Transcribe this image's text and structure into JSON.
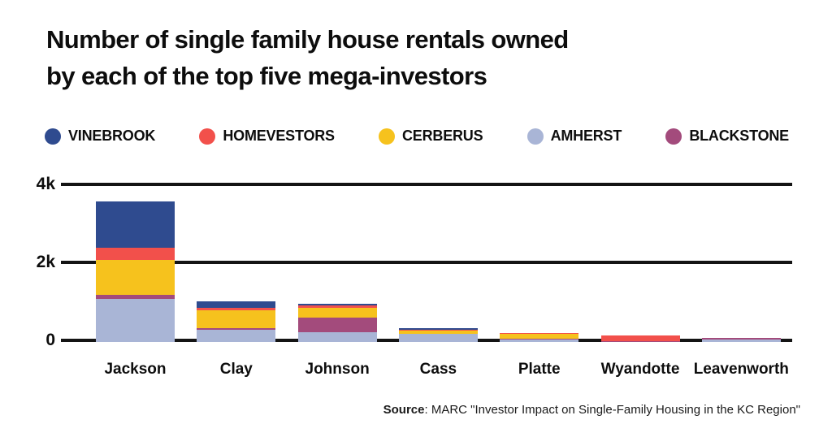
{
  "title": {
    "line1": "Number of single family house rentals owned",
    "line2": "by each of the top five mega-investors"
  },
  "source": {
    "label": "Source",
    "text": ": MARC \"Investor Impact on Single-Family Housing in the KC Region\""
  },
  "colors": {
    "background": "#ffffff",
    "text": "#0d0d0d",
    "gridline": "#141414"
  },
  "chart_data": {
    "type": "bar",
    "subtype": "stacked-vertical",
    "categories": [
      "Jackson",
      "Clay",
      "Johnson",
      "Cass",
      "Platte",
      "Wyandotte",
      "Leavenworth"
    ],
    "series": [
      {
        "name": "VINEBROOK",
        "color": "#2F4B8F",
        "values": [
          1180,
          170,
          40,
          40,
          0,
          0,
          0
        ]
      },
      {
        "name": "HOMEVESTORS",
        "color": "#F2504B",
        "values": [
          320,
          70,
          60,
          25,
          30,
          150,
          0
        ]
      },
      {
        "name": "CERBERUS",
        "color": "#F6C21D",
        "values": [
          900,
          460,
          250,
          85,
          130,
          0,
          0
        ]
      },
      {
        "name": "AMHERST",
        "color": "#A9B5D6",
        "values": [
          1100,
          310,
          260,
          210,
          60,
          0,
          60
        ]
      },
      {
        "name": "BLACKSTONE",
        "color": "#A34B7C",
        "values": [
          100,
          40,
          370,
          0,
          20,
          20,
          40
        ]
      }
    ],
    "stack_order_bottom_to_top": [
      "AMHERST",
      "BLACKSTONE",
      "CERBERUS",
      "HOMEVESTORS",
      "VINEBROOK"
    ],
    "totals_by_category": [
      3600,
      1050,
      980,
      360,
      240,
      170,
      100
    ],
    "yticks": [
      {
        "value": 0,
        "label": "0"
      },
      {
        "value": 2000,
        "label": "2k"
      },
      {
        "value": 4000,
        "label": "4k"
      }
    ],
    "ylim": [
      0,
      4000
    ],
    "grid": "horizontal-black-lines",
    "legend_position": "top"
  }
}
